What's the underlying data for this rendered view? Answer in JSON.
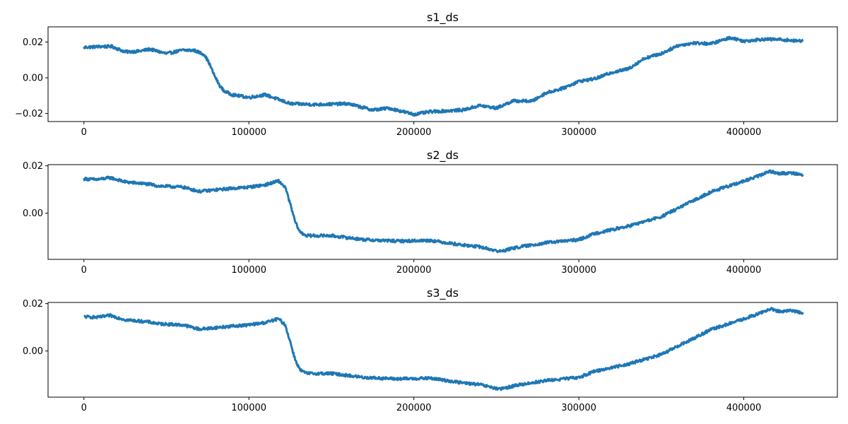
{
  "chart_data": [
    {
      "type": "line",
      "title": "s1_ds",
      "xlabel": "",
      "ylabel": "",
      "xlim": [
        -21750,
        456750
      ],
      "ylim": [
        -0.0245,
        0.0285
      ],
      "xticks": [
        0,
        100000,
        200000,
        300000,
        400000
      ],
      "xtick_labels": [
        "0",
        "100000",
        "200000",
        "300000",
        "400000"
      ],
      "yticks": [
        -0.02,
        0.0,
        0.02
      ],
      "ytick_labels": [
        "−0.02",
        "0.00",
        "0.02"
      ],
      "grid": false,
      "series": [
        {
          "color": "#1f77b4",
          "noise_amplitude": 0.0008,
          "x": [
            0,
            10000,
            17000,
            25000,
            33000,
            40000,
            50000,
            60000,
            67000,
            73000,
            76000,
            79000,
            82000,
            85000,
            90000,
            100000,
            110000,
            125000,
            140000,
            160000,
            175000,
            185000,
            200000,
            210000,
            230000,
            240000,
            250000,
            260000,
            272000,
            280000,
            290000,
            300000,
            310000,
            320000,
            330000,
            340000,
            350000,
            360000,
            370000,
            380000,
            392000,
            400000,
            410000,
            420000,
            428000,
            432000,
            436000
          ],
          "y": [
            0.017,
            0.0175,
            0.0175,
            0.0145,
            0.0148,
            0.016,
            0.0135,
            0.0155,
            0.0153,
            0.013,
            0.008,
            0.0015,
            -0.004,
            -0.0075,
            -0.0095,
            -0.011,
            -0.0095,
            -0.0145,
            -0.015,
            -0.0145,
            -0.018,
            -0.017,
            -0.0205,
            -0.019,
            -0.018,
            -0.0155,
            -0.017,
            -0.013,
            -0.013,
            -0.0085,
            -0.006,
            -0.002,
            -0.0005,
            0.003,
            0.005,
            0.011,
            0.0135,
            0.018,
            0.0195,
            0.019,
            0.0225,
            0.0205,
            0.0215,
            0.0215,
            0.021,
            0.0205,
            0.021
          ]
        }
      ]
    },
    {
      "type": "line",
      "title": "s2_ds",
      "xlabel": "",
      "ylabel": "",
      "xlim": [
        -21750,
        456750
      ],
      "ylim": [
        -0.0195,
        0.0205
      ],
      "xticks": [
        0,
        100000,
        200000,
        300000,
        400000
      ],
      "xtick_labels": [
        "0",
        "100000",
        "200000",
        "300000",
        "400000"
      ],
      "yticks": [
        0.0,
        0.02
      ],
      "ytick_labels": [
        "0.00",
        "0.02"
      ],
      "grid": false,
      "series": [
        {
          "color": "#1f77b4",
          "noise_amplitude": 0.0006,
          "x": [
            0,
            8000,
            16000,
            25000,
            40000,
            45000,
            60000,
            70000,
            90000,
            100000,
            110000,
            118000,
            122000,
            125000,
            128000,
            131000,
            135000,
            150000,
            170000,
            190000,
            210000,
            230000,
            240000,
            252000,
            262000,
            280000,
            300000,
            310000,
            320000,
            330000,
            340000,
            350000,
            370000,
            380000,
            400000,
            410000,
            416000,
            420000,
            430000,
            436000
          ],
          "y": [
            0.0145,
            0.0142,
            0.015,
            0.0132,
            0.0122,
            0.0115,
            0.011,
            0.0092,
            0.0105,
            0.011,
            0.012,
            0.0136,
            0.011,
            0.004,
            -0.0035,
            -0.008,
            -0.0095,
            -0.0095,
            -0.0112,
            -0.0118,
            -0.0115,
            -0.0135,
            -0.0142,
            -0.0162,
            -0.0145,
            -0.0125,
            -0.0112,
            -0.0085,
            -0.007,
            -0.0055,
            -0.0035,
            -0.0015,
            0.0055,
            0.009,
            0.0135,
            0.016,
            0.0178,
            0.0168,
            0.017,
            0.016
          ]
        }
      ]
    },
    {
      "type": "line",
      "title": "s3_ds",
      "xlabel": "",
      "ylabel": "",
      "xlim": [
        -21750,
        456750
      ],
      "ylim": [
        -0.0195,
        0.0205
      ],
      "xticks": [
        0,
        100000,
        200000,
        300000,
        400000
      ],
      "xtick_labels": [
        "0",
        "100000",
        "200000",
        "300000",
        "400000"
      ],
      "yticks": [
        0.0,
        0.02
      ],
      "ytick_labels": [
        "0.00",
        "0.02"
      ],
      "grid": false,
      "series": [
        {
          "color": "#1f77b4",
          "noise_amplitude": 0.0006,
          "x": [
            0,
            8000,
            16000,
            25000,
            40000,
            45000,
            60000,
            70000,
            90000,
            100000,
            110000,
            118000,
            122000,
            125000,
            128000,
            131000,
            135000,
            150000,
            170000,
            190000,
            210000,
            230000,
            240000,
            252000,
            262000,
            280000,
            300000,
            310000,
            320000,
            330000,
            340000,
            350000,
            370000,
            380000,
            400000,
            410000,
            416000,
            420000,
            430000,
            436000
          ],
          "y": [
            0.0145,
            0.0142,
            0.015,
            0.0132,
            0.0122,
            0.0115,
            0.011,
            0.0092,
            0.0105,
            0.011,
            0.012,
            0.0136,
            0.011,
            0.004,
            -0.0035,
            -0.008,
            -0.0095,
            -0.0095,
            -0.0112,
            -0.0118,
            -0.0115,
            -0.0135,
            -0.0142,
            -0.0162,
            -0.0145,
            -0.0125,
            -0.0112,
            -0.0085,
            -0.007,
            -0.0055,
            -0.0035,
            -0.0015,
            0.0055,
            0.009,
            0.0135,
            0.016,
            0.0178,
            0.0168,
            0.017,
            0.016
          ]
        }
      ]
    }
  ]
}
